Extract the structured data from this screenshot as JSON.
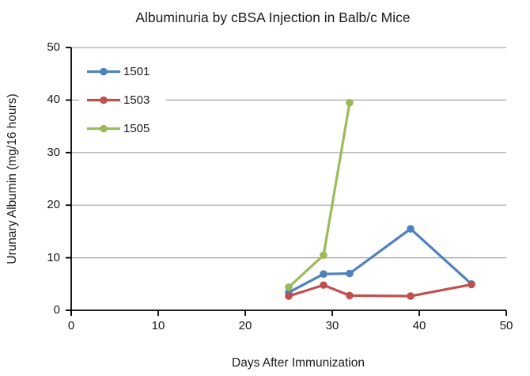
{
  "chart_data": {
    "type": "line",
    "title": "Albuminuria by cBSA Injection in Balb/c Mice",
    "xlabel": "Days After Immunization",
    "ylabel": "Urunary Albumin (mg/16 hours)",
    "xlim": [
      0,
      50
    ],
    "ylim": [
      0,
      50
    ],
    "xticks": [
      0,
      10,
      20,
      30,
      40,
      50
    ],
    "yticks": [
      0,
      10,
      20,
      30,
      40,
      50
    ],
    "grid": "horizontal-only",
    "legend_position": "upper-left-inside",
    "series": [
      {
        "name": "1501",
        "color": "#4F81BD",
        "marker": "circle",
        "x": [
          25,
          29,
          32,
          39,
          46
        ],
        "y": [
          3.4,
          6.9,
          7.0,
          15.5,
          5.0
        ]
      },
      {
        "name": "1503",
        "color": "#C0504D",
        "marker": "circle",
        "x": [
          25,
          29,
          32,
          39,
          46
        ],
        "y": [
          2.7,
          4.8,
          2.8,
          2.7,
          4.9
        ]
      },
      {
        "name": "1505",
        "color": "#9BBB59",
        "marker": "circle",
        "x": [
          25,
          29,
          32
        ],
        "y": [
          4.4,
          10.5,
          39.5
        ]
      }
    ],
    "colors": {
      "gridline": "#A6A6A6",
      "axis": "#000000",
      "text": "#1a1a1a",
      "background": "#ffffff"
    }
  }
}
